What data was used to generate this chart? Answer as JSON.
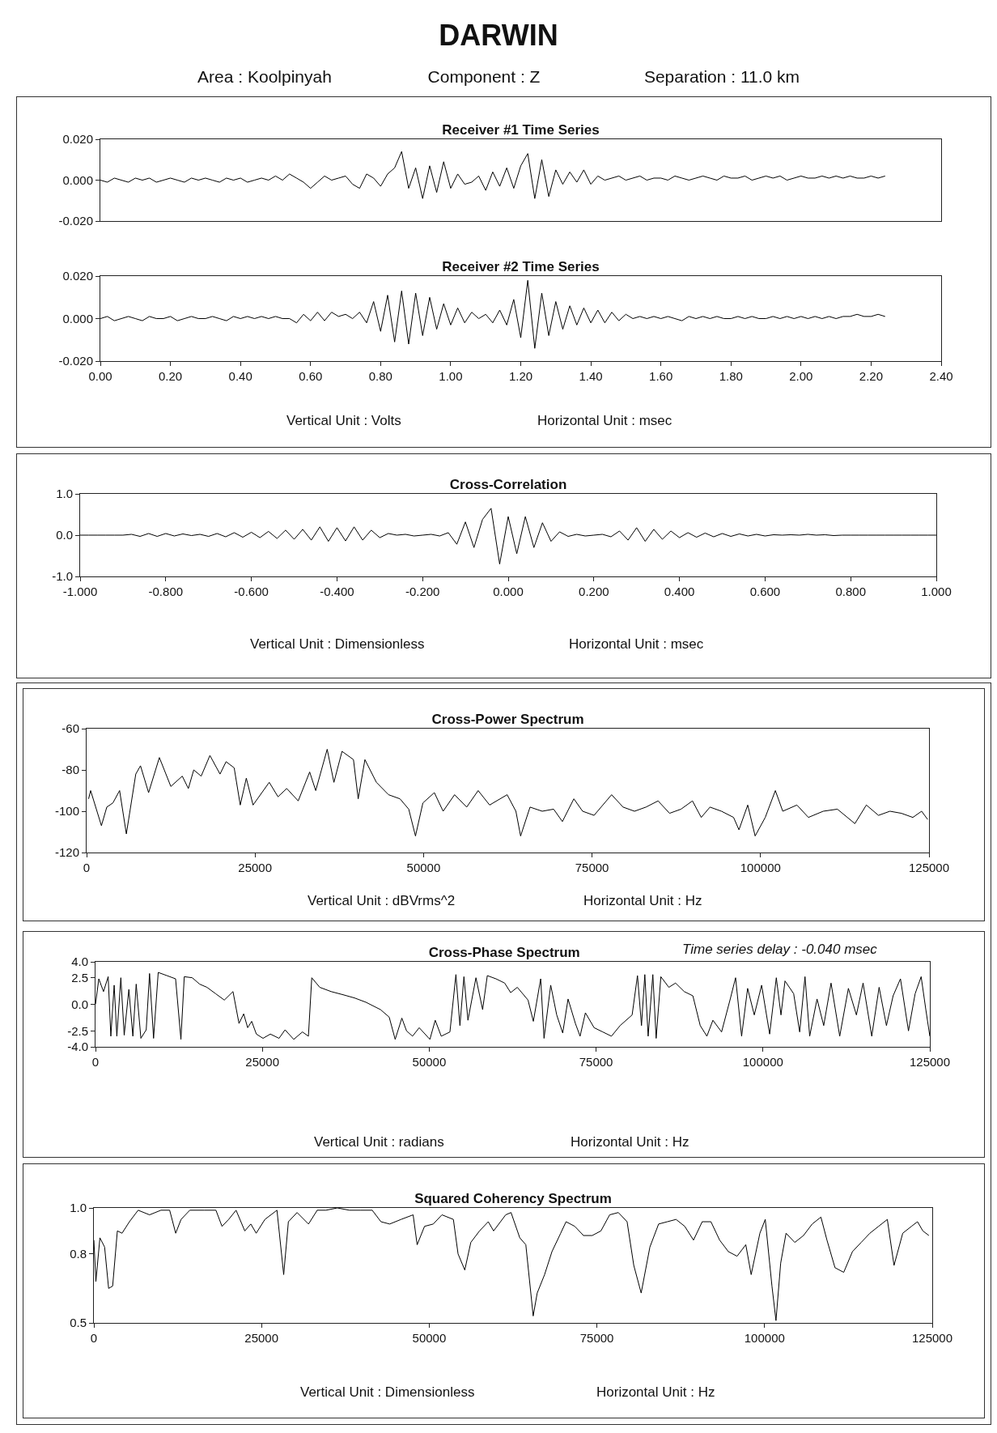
{
  "chart_data": [
    {
      "type": "other",
      "title": "DARWIN",
      "annotations": [
        "Area : Koolpinyah",
        "Component : Z",
        "Separation : 11.0 km"
      ]
    },
    {
      "type": "line",
      "title": "Receiver #1 Time Series",
      "color": "#000000",
      "xlim": [
        0,
        2.4
      ],
      "ylim": [
        -0.02,
        0.02
      ],
      "tick_labels": "y",
      "yticks": [
        {
          "value": 0.02,
          "label": "0.020"
        },
        {
          "value": 0,
          "label": "0.000"
        },
        {
          "value": -0.02,
          "label": "-0.020"
        }
      ],
      "x": [
        0,
        0.02,
        0.04,
        0.06,
        0.08,
        0.1,
        0.12,
        0.14,
        0.16,
        0.18,
        0.2,
        0.22,
        0.24,
        0.26,
        0.28,
        0.3,
        0.32,
        0.34,
        0.36,
        0.38,
        0.4,
        0.42,
        0.44,
        0.46,
        0.48,
        0.5,
        0.52,
        0.54,
        0.56,
        0.58,
        0.6,
        0.62,
        0.64,
        0.66,
        0.68,
        0.7,
        0.72,
        0.74,
        0.76,
        0.78,
        0.8,
        0.82,
        0.84,
        0.86,
        0.88,
        0.9,
        0.92,
        0.94,
        0.96,
        0.98,
        1,
        1.02,
        1.04,
        1.06,
        1.08,
        1.1,
        1.12,
        1.14,
        1.16,
        1.18,
        1.2,
        1.22,
        1.24,
        1.26,
        1.28,
        1.3,
        1.32,
        1.34,
        1.36,
        1.38,
        1.4,
        1.42,
        1.44,
        1.46,
        1.48,
        1.5,
        1.52,
        1.54,
        1.56,
        1.58,
        1.6,
        1.62,
        1.64,
        1.66,
        1.68,
        1.7,
        1.72,
        1.74,
        1.76,
        1.78,
        1.8,
        1.82,
        1.84,
        1.86,
        1.88,
        1.9,
        1.92,
        1.94,
        1.96,
        1.98,
        2,
        2.02,
        2.04,
        2.06,
        2.08,
        2.1,
        2.12,
        2.14,
        2.16,
        2.18,
        2.2,
        2.22,
        2.24
      ],
      "values": [
        0.0,
        -0.001,
        0.001,
        0.0,
        -0.001,
        0.001,
        0.0,
        0.001,
        -0.001,
        0.0,
        0.001,
        0.0,
        -0.001,
        0.001,
        0.0,
        0.001,
        0.0,
        -0.001,
        0.001,
        0.0,
        0.001,
        -0.001,
        0.0,
        0.001,
        0.0,
        0.002,
        0.0,
        0.003,
        0.001,
        -0.001,
        -0.004,
        -0.001,
        0.002,
        0.0,
        0.001,
        0.002,
        -0.002,
        -0.004,
        0.003,
        0.001,
        -0.003,
        0.003,
        0.006,
        0.014,
        -0.004,
        0.006,
        -0.009,
        0.007,
        -0.006,
        0.009,
        -0.004,
        0.003,
        -0.002,
        -0.001,
        0.002,
        -0.005,
        0.004,
        -0.003,
        0.006,
        -0.004,
        0.007,
        0.013,
        -0.009,
        0.01,
        -0.008,
        0.005,
        -0.002,
        0.004,
        -0.001,
        0.005,
        -0.002,
        0.002,
        0.0,
        0.001,
        0.002,
        0.0,
        0.001,
        0.002,
        0.0,
        0.001,
        0.001,
        0.0,
        0.002,
        0.001,
        0.0,
        0.001,
        0.002,
        0.001,
        0.0,
        0.002,
        0.001,
        0.001,
        0.002,
        0.0,
        0.001,
        0.002,
        0.001,
        0.002,
        0.0,
        0.001,
        0.002,
        0.001,
        0.001,
        0.002,
        0.001,
        0.002,
        0.001,
        0.002,
        0.001,
        0.001,
        0.002,
        0.001,
        0.002
      ]
    },
    {
      "type": "line",
      "title": "Receiver #2 Time Series",
      "color": "#000000",
      "xlim": [
        0,
        2.4
      ],
      "ylim": [
        -0.02,
        0.02
      ],
      "annotations": [
        "Vertical Unit : Volts",
        "Horizontal Unit : msec"
      ],
      "xticks": [
        {
          "value": 0,
          "label": "0.00"
        },
        {
          "value": 0.2,
          "label": "0.20"
        },
        {
          "value": 0.4,
          "label": "0.40"
        },
        {
          "value": 0.6,
          "label": "0.60"
        },
        {
          "value": 0.8,
          "label": "0.80"
        },
        {
          "value": 1,
          "label": "1.00"
        },
        {
          "value": 1.2,
          "label": "1.20"
        },
        {
          "value": 1.4,
          "label": "1.40"
        },
        {
          "value": 1.6,
          "label": "1.60"
        },
        {
          "value": 1.8,
          "label": "1.80"
        },
        {
          "value": 2,
          "label": "2.00"
        },
        {
          "value": 2.2,
          "label": "2.20"
        },
        {
          "value": 2.4,
          "label": "2.40"
        }
      ],
      "yticks": [
        {
          "value": 0.02,
          "label": "0.020"
        },
        {
          "value": 0,
          "label": "0.000"
        },
        {
          "value": -0.02,
          "label": "-0.020"
        }
      ],
      "x": [
        0,
        0.02,
        0.04,
        0.06,
        0.08,
        0.1,
        0.12,
        0.14,
        0.16,
        0.18,
        0.2,
        0.22,
        0.24,
        0.26,
        0.28,
        0.3,
        0.32,
        0.34,
        0.36,
        0.38,
        0.4,
        0.42,
        0.44,
        0.46,
        0.48,
        0.5,
        0.52,
        0.54,
        0.56,
        0.58,
        0.6,
        0.62,
        0.64,
        0.66,
        0.68,
        0.7,
        0.72,
        0.74,
        0.76,
        0.78,
        0.8,
        0.82,
        0.84,
        0.86,
        0.88,
        0.9,
        0.92,
        0.94,
        0.96,
        0.98,
        1,
        1.02,
        1.04,
        1.06,
        1.08,
        1.1,
        1.12,
        1.14,
        1.16,
        1.18,
        1.2,
        1.22,
        1.24,
        1.26,
        1.28,
        1.3,
        1.32,
        1.34,
        1.36,
        1.38,
        1.4,
        1.42,
        1.44,
        1.46,
        1.48,
        1.5,
        1.52,
        1.54,
        1.56,
        1.58,
        1.6,
        1.62,
        1.64,
        1.66,
        1.68,
        1.7,
        1.72,
        1.74,
        1.76,
        1.78,
        1.8,
        1.82,
        1.84,
        1.86,
        1.88,
        1.9,
        1.92,
        1.94,
        1.96,
        1.98,
        2,
        2.02,
        2.04,
        2.06,
        2.08,
        2.1,
        2.12,
        2.14,
        2.16,
        2.18,
        2.2,
        2.22,
        2.24
      ],
      "values": [
        0.0,
        0.001,
        -0.001,
        0.0,
        0.001,
        0.0,
        -0.001,
        0.001,
        0.0,
        0.0,
        0.001,
        -0.001,
        0.0,
        0.001,
        0.0,
        0.0,
        0.001,
        0.0,
        -0.001,
        0.001,
        0.0,
        0.001,
        0.0,
        0.001,
        0.0,
        0.001,
        0.0,
        0.0,
        -0.002,
        0.002,
        -0.001,
        0.003,
        -0.001,
        0.003,
        0.001,
        0.002,
        0.0,
        0.003,
        -0.002,
        0.008,
        -0.006,
        0.011,
        -0.011,
        0.013,
        -0.012,
        0.012,
        -0.008,
        0.01,
        -0.005,
        0.007,
        -0.003,
        0.005,
        -0.002,
        0.003,
        0.0,
        0.002,
        -0.002,
        0.004,
        -0.003,
        0.009,
        -0.009,
        0.018,
        -0.014,
        0.012,
        -0.008,
        0.008,
        -0.005,
        0.006,
        -0.003,
        0.005,
        -0.002,
        0.004,
        -0.002,
        0.003,
        -0.001,
        0.002,
        0.0,
        0.001,
        0.0,
        0.001,
        0.0,
        0.001,
        0.0,
        -0.001,
        0.001,
        0.0,
        0.001,
        0.0,
        0.001,
        0.0,
        0.0,
        0.001,
        0.0,
        0.001,
        0.0,
        0.0,
        0.001,
        0.0,
        0.001,
        0.0,
        0.001,
        0.0,
        0.001,
        0.0,
        0.001,
        0.0,
        0.001,
        0.001,
        0.002,
        0.001,
        0.001,
        0.002,
        0.001
      ]
    },
    {
      "type": "line",
      "title": "Cross-Correlation",
      "color": "#000000",
      "xlim": [
        -1,
        1
      ],
      "ylim": [
        -1,
        1
      ],
      "annotations": [
        "Vertical Unit : Dimensionless",
        "Horizontal Unit : msec"
      ],
      "xticks": [
        {
          "value": -1,
          "label": "-1.000"
        },
        {
          "value": -0.8,
          "label": "-0.800"
        },
        {
          "value": -0.6,
          "label": "-0.600"
        },
        {
          "value": -0.4,
          "label": "-0.400"
        },
        {
          "value": -0.2,
          "label": "-0.200"
        },
        {
          "value": 0,
          "label": "0.000"
        },
        {
          "value": 0.2,
          "label": "0.200"
        },
        {
          "value": 0.4,
          "label": "0.400"
        },
        {
          "value": 0.6,
          "label": "0.600"
        },
        {
          "value": 0.8,
          "label": "0.800"
        },
        {
          "value": 1,
          "label": "1.000"
        }
      ],
      "yticks": [
        {
          "value": 1,
          "label": "1.0"
        },
        {
          "value": 0,
          "label": "0.0"
        },
        {
          "value": -1,
          "label": "-1.0"
        }
      ],
      "x": [
        -1,
        -0.98,
        -0.96,
        -0.94,
        -0.92,
        -0.9,
        -0.88,
        -0.86,
        -0.84,
        -0.82,
        -0.8,
        -0.78,
        -0.76,
        -0.74,
        -0.72,
        -0.7,
        -0.68,
        -0.66,
        -0.64,
        -0.62,
        -0.6,
        -0.58,
        -0.56,
        -0.54,
        -0.52,
        -0.5,
        -0.48,
        -0.46,
        -0.44,
        -0.42,
        -0.4,
        -0.38,
        -0.36,
        -0.34,
        -0.32,
        -0.3,
        -0.28,
        -0.26,
        -0.24,
        -0.22,
        -0.2,
        -0.18,
        -0.16,
        -0.14,
        -0.12,
        -0.1,
        -0.08,
        -0.06,
        -0.04,
        -0.02,
        0,
        0.02,
        0.04,
        0.06,
        0.08,
        0.1,
        0.12,
        0.14,
        0.16,
        0.18,
        0.2,
        0.22,
        0.24,
        0.26,
        0.28,
        0.3,
        0.32,
        0.34,
        0.36,
        0.38,
        0.4,
        0.42,
        0.44,
        0.46,
        0.48,
        0.5,
        0.52,
        0.54,
        0.56,
        0.58,
        0.6,
        0.62,
        0.64,
        0.66,
        0.68,
        0.7,
        0.72,
        0.74,
        0.76,
        0.78,
        0.8,
        0.82,
        0.84,
        0.86,
        0.88,
        0.9,
        0.92,
        0.94,
        0.96,
        0.98,
        1
      ],
      "values": [
        0,
        0,
        0,
        0,
        0,
        0,
        0.02,
        -0.03,
        0.04,
        -0.03,
        0.04,
        -0.02,
        0.03,
        -0.01,
        0.02,
        -0.03,
        0.04,
        -0.04,
        0.06,
        -0.05,
        0.07,
        -0.06,
        0.09,
        -0.08,
        0.12,
        -0.1,
        0.14,
        -0.12,
        0.2,
        -0.15,
        0.18,
        -0.14,
        0.2,
        -0.12,
        0.12,
        -0.06,
        0.04,
        0.0,
        0.02,
        -0.02,
        0.0,
        0.02,
        -0.02,
        0.06,
        -0.22,
        0.32,
        -0.3,
        0.38,
        0.65,
        -0.7,
        0.45,
        -0.45,
        0.45,
        -0.3,
        0.3,
        -0.15,
        0.08,
        -0.03,
        0.02,
        -0.02,
        0.0,
        0.02,
        -0.04,
        0.1,
        -0.12,
        0.18,
        -0.15,
        0.14,
        -0.1,
        0.1,
        -0.06,
        0.06,
        -0.05,
        0.05,
        -0.04,
        0.04,
        -0.03,
        0.03,
        -0.02,
        0.02,
        -0.02,
        0.01,
        0.0,
        0.01,
        0.0,
        0.02,
        0.0,
        0.01,
        -0.01,
        0,
        0,
        0,
        0,
        0,
        0,
        0,
        0,
        0,
        0,
        0,
        0
      ]
    },
    {
      "type": "line",
      "title": "Cross-Power Spectrum",
      "color": "#000000",
      "xlim": [
        0,
        125000
      ],
      "ylim": [
        -120,
        -60
      ],
      "annotations": [
        "Vertical Unit : dBVrms^2",
        "Horizontal Unit : Hz"
      ],
      "xticks": [
        0,
        25000,
        50000,
        75000,
        100000,
        125000
      ],
      "yticks": [
        -60,
        -80,
        -100,
        -120
      ],
      "x": [
        300,
        600,
        2200,
        3000,
        3900,
        4900,
        5900,
        7300,
        8000,
        9200,
        10800,
        12500,
        14200,
        15100,
        15900,
        17000,
        18300,
        19800,
        20700,
        21900,
        22800,
        23700,
        24700,
        27100,
        28400,
        29700,
        31400,
        33100,
        34000,
        35700,
        36700,
        37900,
        39600,
        40300,
        41300,
        43000,
        44800,
        46500,
        47800,
        48800,
        49900,
        51600,
        52900,
        54600,
        56400,
        58100,
        59800,
        62400,
        63700,
        64400,
        65800,
        67600,
        69300,
        70600,
        72300,
        73600,
        75300,
        77900,
        79600,
        81300,
        83000,
        84800,
        86500,
        88200,
        89900,
        91200,
        92500,
        94200,
        96000,
        96800,
        98100,
        99200,
        100700,
        102200,
        103300,
        105400,
        107100,
        109300,
        111400,
        114000,
        115700,
        117500,
        119200,
        120900,
        122600,
        123900,
        124800
      ],
      "values": [
        -94,
        -90,
        -107,
        -98,
        -96,
        -90,
        -111,
        -82,
        -78,
        -91,
        -74,
        -88,
        -83,
        -89,
        -80,
        -83,
        -73,
        -82,
        -76,
        -79,
        -97,
        -84,
        -97,
        -86,
        -93,
        -89,
        -95,
        -81,
        -90,
        -70,
        -86,
        -71,
        -75,
        -94,
        -75,
        -86,
        -92,
        -94,
        -99,
        -112,
        -96,
        -91,
        -100,
        -92,
        -98,
        -90,
        -97,
        -92,
        -100,
        -112,
        -98,
        -100,
        -99,
        -105,
        -94,
        -100,
        -102,
        -92,
        -98,
        -100,
        -98,
        -95,
        -101,
        -99,
        -95,
        -103,
        -98,
        -100,
        -103,
        -109,
        -97,
        -112,
        -103,
        -90,
        -100,
        -97,
        -103,
        -100,
        -99,
        -106,
        -97,
        -102,
        -100,
        -101,
        -103,
        -100,
        -104
      ]
    },
    {
      "type": "line",
      "title": "Cross-Phase Spectrum",
      "color": "#000000",
      "xlim": [
        0,
        125000
      ],
      "ylim": [
        -4,
        4
      ],
      "annotations": [
        "Time series delay : -0.040 msec",
        "Vertical Unit : radians",
        "Horizontal Unit : Hz"
      ],
      "xticks": [
        0,
        25000,
        50000,
        75000,
        100000,
        125000
      ],
      "yticks": [
        {
          "value": 4,
          "label": "4.0"
        },
        {
          "value": 2.5,
          "label": "2.5"
        },
        {
          "value": 0,
          "label": "0.0"
        },
        {
          "value": -2.5,
          "label": "-2.5"
        },
        {
          "value": -4,
          "label": "-4.0"
        }
      ],
      "x": [
        0,
        500,
        1200,
        1900,
        2300,
        2800,
        3200,
        3800,
        4300,
        5000,
        5600,
        6100,
        6800,
        7600,
        8100,
        8700,
        9400,
        10700,
        12000,
        12800,
        13300,
        14500,
        15600,
        16700,
        18000,
        19300,
        20600,
        21500,
        22200,
        22800,
        23400,
        24100,
        25100,
        26200,
        27500,
        28400,
        29700,
        31000,
        31900,
        32400,
        33600,
        35300,
        37100,
        38800,
        40500,
        42700,
        44000,
        44900,
        45900,
        46600,
        47500,
        48500,
        50100,
        50900,
        51800,
        53100,
        54000,
        54600,
        55200,
        55800,
        57000,
        58000,
        58700,
        60000,
        61300,
        62200,
        63200,
        64800,
        65600,
        66700,
        67200,
        68200,
        69100,
        70000,
        70800,
        71900,
        72600,
        73400,
        74700,
        76000,
        77300,
        78600,
        80400,
        81200,
        81800,
        82300,
        82800,
        83500,
        84000,
        84700,
        85900,
        86900,
        88200,
        89500,
        90600,
        91600,
        92500,
        93800,
        95100,
        95900,
        96800,
        97700,
        98700,
        99800,
        101000,
        102000,
        102700,
        103300,
        104600,
        105500,
        106300,
        107000,
        108100,
        109100,
        110200,
        111500,
        112800,
        114000,
        115000,
        116300,
        117400,
        118500,
        119500,
        120600,
        121800,
        122800,
        123700,
        124400,
        125000
      ],
      "values": [
        0.0,
        2.4,
        1.2,
        2.6,
        -3.0,
        1.8,
        -3.0,
        2.5,
        -2.9,
        1.4,
        -3.0,
        1.9,
        -3.2,
        -2.4,
        2.9,
        -3.2,
        3.0,
        2.7,
        2.4,
        -3.3,
        2.6,
        2.5,
        1.9,
        1.6,
        1.0,
        0.4,
        1.2,
        -1.8,
        -0.9,
        -2.2,
        -1.6,
        -2.8,
        -3.2,
        -2.8,
        -3.2,
        -2.4,
        -3.3,
        -2.6,
        -3.0,
        2.5,
        1.6,
        1.2,
        0.9,
        0.6,
        0.2,
        -0.5,
        -1.2,
        -3.3,
        -1.3,
        -2.5,
        -3.0,
        -2.2,
        -3.3,
        -1.5,
        -3.0,
        -2.6,
        2.8,
        -2.0,
        2.6,
        -1.5,
        2.5,
        -0.5,
        2.7,
        2.4,
        2.0,
        1.1,
        1.6,
        0.4,
        -1.6,
        2.4,
        -3.2,
        1.8,
        -1.0,
        -2.7,
        0.5,
        -1.8,
        -3.0,
        -0.8,
        -2.2,
        -2.6,
        -3.0,
        -2.0,
        -1.0,
        2.7,
        -2.0,
        2.8,
        -3.0,
        2.8,
        -3.2,
        2.6,
        1.6,
        2.0,
        1.2,
        0.8,
        -2.0,
        -3.0,
        -1.5,
        -2.6,
        0.5,
        2.5,
        -3.0,
        1.5,
        -1.0,
        1.8,
        -2.8,
        2.5,
        -1.0,
        2.2,
        1.0,
        -2.6,
        2.6,
        -3.0,
        0.5,
        -2.0,
        2.0,
        -3.0,
        1.5,
        -1.0,
        2.0,
        -3.0,
        1.6,
        -2.0,
        0.8,
        2.4,
        -2.5,
        1.0,
        2.6,
        -0.5,
        -3.0
      ]
    },
    {
      "type": "line",
      "title": "Squared Coherency Spectrum",
      "color": "#000000",
      "xlim": [
        0,
        125000
      ],
      "ylim": [
        0.5,
        1.0
      ],
      "annotations": [
        "Vertical Unit : Dimensionless",
        "Horizontal Unit : Hz"
      ],
      "xticks": [
        0,
        25000,
        50000,
        75000,
        100000,
        125000
      ],
      "yticks": [
        {
          "value": 1,
          "label": "1.0"
        },
        {
          "value": 0.8,
          "label": "0.8"
        },
        {
          "value": 0.5,
          "label": "0.5"
        }
      ],
      "x": [
        0,
        300,
        900,
        1600,
        2200,
        2800,
        3500,
        4200,
        5300,
        6600,
        8300,
        10000,
        11300,
        12200,
        13000,
        14300,
        16500,
        18200,
        19100,
        20100,
        21200,
        22500,
        23400,
        24200,
        25500,
        27300,
        28300,
        29000,
        30300,
        32000,
        33300,
        34600,
        36300,
        38100,
        39800,
        41500,
        42800,
        44100,
        45800,
        47600,
        48200,
        49300,
        50600,
        51900,
        53600,
        54300,
        55300,
        56200,
        57500,
        58800,
        59600,
        61400,
        62200,
        63500,
        64400,
        65500,
        66100,
        67200,
        68300,
        69600,
        70400,
        71700,
        73000,
        74300,
        75600,
        76900,
        78200,
        79500,
        80500,
        81600,
        82900,
        84200,
        85500,
        86800,
        88100,
        89400,
        90700,
        92000,
        93300,
        94600,
        95900,
        97200,
        98000,
        99300,
        100100,
        101100,
        101700,
        102400,
        103200,
        104500,
        105800,
        107100,
        108400,
        109300,
        110500,
        111800,
        113100,
        114400,
        115700,
        117000,
        118300,
        119300,
        120600,
        121900,
        122800,
        123600,
        124500
      ],
      "values": [
        0.86,
        0.68,
        0.87,
        0.83,
        0.65,
        0.66,
        0.9,
        0.89,
        0.94,
        0.99,
        0.97,
        0.99,
        0.99,
        0.89,
        0.95,
        0.99,
        0.99,
        0.99,
        0.92,
        0.95,
        0.99,
        0.9,
        0.93,
        0.89,
        0.95,
        0.99,
        0.71,
        0.94,
        0.98,
        0.93,
        0.99,
        0.99,
        1.0,
        0.99,
        0.99,
        0.99,
        0.94,
        0.93,
        0.95,
        0.97,
        0.84,
        0.92,
        0.93,
        0.97,
        0.95,
        0.8,
        0.73,
        0.85,
        0.9,
        0.94,
        0.9,
        0.97,
        0.98,
        0.87,
        0.84,
        0.53,
        0.63,
        0.71,
        0.81,
        0.89,
        0.94,
        0.92,
        0.88,
        0.88,
        0.9,
        0.97,
        0.98,
        0.94,
        0.75,
        0.63,
        0.83,
        0.93,
        0.94,
        0.95,
        0.92,
        0.86,
        0.94,
        0.94,
        0.86,
        0.81,
        0.79,
        0.84,
        0.71,
        0.89,
        0.95,
        0.66,
        0.51,
        0.76,
        0.89,
        0.85,
        0.88,
        0.93,
        0.96,
        0.86,
        0.74,
        0.72,
        0.81,
        0.85,
        0.89,
        0.92,
        0.95,
        0.75,
        0.89,
        0.92,
        0.94,
        0.9,
        0.88
      ]
    }
  ]
}
